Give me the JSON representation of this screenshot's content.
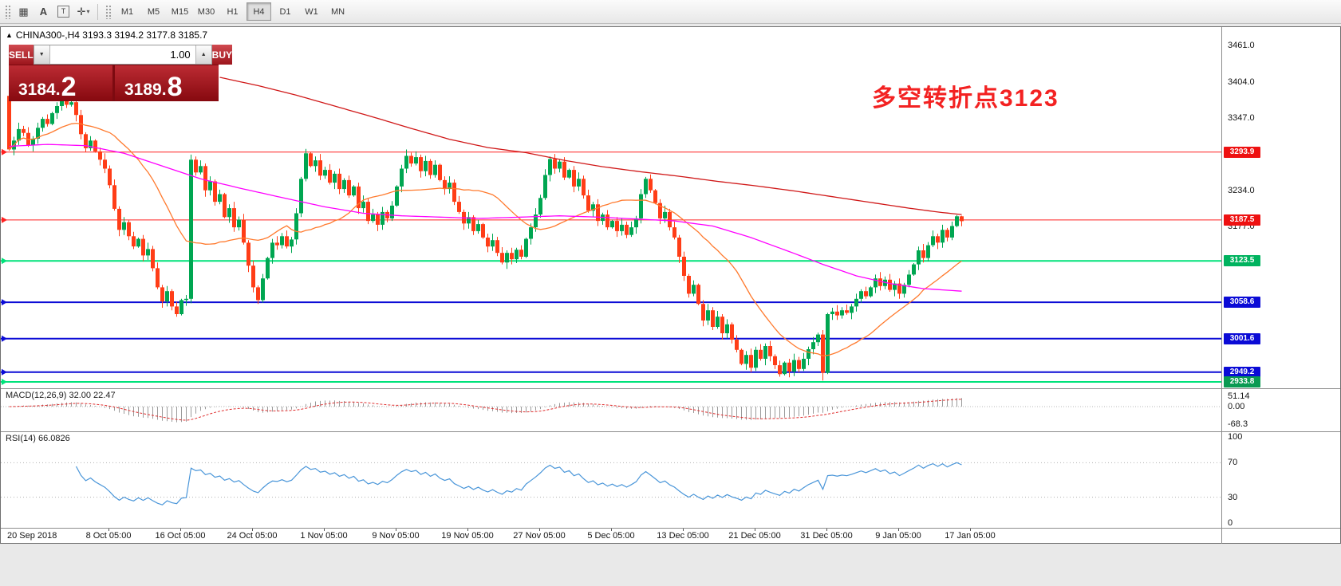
{
  "colors": {
    "up": "#00a651",
    "down": "#ff3d17",
    "ma_fast": "#ff7a2e",
    "ma_mid": "#ff00ff",
    "ma_slow": "#d01818",
    "macd_hist": "#9a9a9a",
    "macd_signal": "#e03030",
    "rsi": "#4a96d9"
  },
  "toolbar": {
    "icons": [
      {
        "name": "chart-grid-icon",
        "glyph": "▦"
      },
      {
        "name": "text-annotation-icon",
        "glyph": "A"
      },
      {
        "name": "text-frame-icon",
        "glyph": "T",
        "boxed": true
      },
      {
        "name": "pointer-dropdown-icon",
        "glyph": "✛",
        "caret": "▾"
      }
    ],
    "timeframes": [
      "M1",
      "M5",
      "M15",
      "M30",
      "H1",
      "H4",
      "D1",
      "W1",
      "MN"
    ],
    "active_timeframe": "H4"
  },
  "symbol_header": {
    "direction_icon": "▲",
    "text": "CHINA300-,H4  3193.3 3194.2 3177.8 3185.7"
  },
  "trade_panel": {
    "sell_label": "SELL",
    "buy_label": "BUY",
    "volume": "1.00",
    "spin_down_glyph": "▼",
    "spin_up_glyph": "▲",
    "sell_price_main": "3184.",
    "sell_price_big": "2",
    "buy_price_main": "3189.",
    "buy_price_big": "8"
  },
  "annotation": {
    "text": "多空转折点3123",
    "color": "#f32222"
  },
  "price_axis": {
    "plain_labels": [
      {
        "text": "3461.0",
        "price": 3461.0
      },
      {
        "text": "3404.0",
        "price": 3404.0
      },
      {
        "text": "3347.0",
        "price": 3347.0
      },
      {
        "text": "3234.0",
        "price": 3234.0
      },
      {
        "text": "3177.0",
        "price": 3177.0
      }
    ],
    "tags": [
      {
        "text": "3293.9",
        "price": 3293.9,
        "color": "#ee1111"
      },
      {
        "text": "3187.5",
        "price": 3187.5,
        "color": "#ee1111"
      },
      {
        "text": "3123.5",
        "price": 3123.5,
        "color": "#00b35f"
      },
      {
        "text": "3058.6",
        "price": 3058.6,
        "color": "#0b0bd6"
      },
      {
        "text": "3001.6",
        "price": 3001.6,
        "color": "#0b0bd6"
      },
      {
        "text": "2949.2",
        "price": 2949.2,
        "color": "#0b0bd6"
      },
      {
        "text": "2933.8",
        "price": 2933.8,
        "color": "#0a9a52"
      }
    ]
  },
  "panels": {
    "macd": {
      "label": "MACD(12,26,9) 32.00 22.47",
      "axis": [
        "51.14",
        "0.00",
        "-68.3"
      ]
    },
    "rsi": {
      "label": "RSI(14) 66.0826",
      "axis": [
        "100",
        "70",
        "30",
        "0"
      ]
    }
  },
  "time_axis": [
    "20 Sep 2018",
    "8 Oct 05:00",
    "16 Oct 05:00",
    "24 Oct 05:00",
    "1 Nov 05:00",
    "9 Nov 05:00",
    "19 Nov 05:00",
    "27 Nov 05:00",
    "5 Dec 05:00",
    "13 Dec 05:00",
    "21 Dec 05:00",
    "31 Dec 05:00",
    "9 Jan 05:00",
    "17 Jan 05:00"
  ],
  "chart_data": {
    "type": "candlestick",
    "symbol": "CHINA300-",
    "timeframe": "H4",
    "last_bar": {
      "open": 3193.3,
      "high": 3194.2,
      "low": 3177.8,
      "close": 3185.7
    },
    "bid": "3184.2",
    "ask": "3189.8",
    "price_axis_range": {
      "top": 3461.0,
      "bottom": 2933.8
    },
    "first_open": 3382,
    "closes": [
      3298,
      3312,
      3330,
      3324,
      3305,
      3315,
      3332,
      3346,
      3338,
      3355,
      3366,
      3374,
      3368,
      3372,
      3352,
      3322,
      3300,
      3312,
      3295,
      3282,
      3268,
      3242,
      3205,
      3172,
      3184,
      3162,
      3146,
      3158,
      3132,
      3142,
      3112,
      3082,
      3060,
      3076,
      3052,
      3040,
      3062,
      3064,
      3282,
      3262,
      3272,
      3234,
      3248,
      3216,
      3228,
      3192,
      3206,
      3176,
      3188,
      3152,
      3116,
      3082,
      3062,
      3096,
      3128,
      3152,
      3148,
      3162,
      3146,
      3157,
      3198,
      3252,
      3292,
      3272,
      3281,
      3257,
      3266,
      3246,
      3260,
      3236,
      3250,
      3226,
      3240,
      3206,
      3216,
      3186,
      3196,
      3180,
      3200,
      3190,
      3210,
      3240,
      3268,
      3288,
      3276,
      3286,
      3264,
      3280,
      3258,
      3274,
      3250,
      3236,
      3246,
      3216,
      3200,
      3182,
      3192,
      3170,
      3181,
      3160,
      3146,
      3156,
      3136,
      3121,
      3136,
      3126,
      3141,
      3130,
      3158,
      3176,
      3196,
      3222,
      3258,
      3283,
      3268,
      3279,
      3254,
      3266,
      3240,
      3252,
      3226,
      3202,
      3212,
      3186,
      3196,
      3176,
      3186,
      3170,
      3180,
      3164,
      3176,
      3190,
      3228,
      3252,
      3234,
      3214,
      3190,
      3200,
      3176,
      3160,
      3130,
      3100,
      3072,
      3086,
      3056,
      3030,
      3046,
      3020,
      3036,
      3010,
      3024,
      3000,
      2984,
      2962,
      2976,
      2956,
      2984,
      2970,
      2990,
      2974,
      2960,
      2946,
      2964,
      2950,
      2968,
      2954,
      2970,
      2985,
      2996,
      3008,
      2948,
      3040,
      3044,
      3038,
      3046,
      3042,
      3052,
      3064,
      3076,
      3068,
      3082,
      3096,
      3084,
      3094,
      3078,
      3088,
      3072,
      3086,
      3102,
      3118,
      3140,
      3128,
      3148,
      3162,
      3152,
      3172,
      3160,
      3178,
      3193.3,
      3185.7
    ],
    "wick_overrides": {
      "12": {
        "high": 3390
      },
      "38": {
        "high": 3290
      },
      "170": {
        "low": 2936
      },
      "199": {
        "high": 3194.2,
        "low": 3177.8
      }
    },
    "hlines": [
      {
        "price": 3293.9,
        "color": "#ff2020",
        "width": 1
      },
      {
        "price": 3187.5,
        "color": "#ff2020",
        "width": 1
      },
      {
        "price": 3123.5,
        "color": "#00e27a",
        "width": 2
      },
      {
        "price": 3058.6,
        "color": "#0b0bd6",
        "width": 2
      },
      {
        "price": 3001.6,
        "color": "#0b0bd6",
        "width": 2
      },
      {
        "price": 2949.2,
        "color": "#0b0bd6",
        "width": 2
      },
      {
        "price": 2933.8,
        "color": "#00e27a",
        "width": 2
      }
    ],
    "ma_fast_period": 21,
    "ma_mid_points": [
      [
        0,
        3303
      ],
      [
        8,
        3306
      ],
      [
        16,
        3304
      ],
      [
        24,
        3292
      ],
      [
        32,
        3272
      ],
      [
        40,
        3252
      ],
      [
        49,
        3236
      ],
      [
        58,
        3221
      ],
      [
        66,
        3208
      ],
      [
        74,
        3198
      ],
      [
        82,
        3194
      ],
      [
        90,
        3192
      ],
      [
        98,
        3190
      ],
      [
        107,
        3192
      ],
      [
        115,
        3194
      ],
      [
        123,
        3192
      ],
      [
        131,
        3189
      ],
      [
        139,
        3186
      ],
      [
        147,
        3178
      ],
      [
        155,
        3160
      ],
      [
        163,
        3138
      ],
      [
        170,
        3118
      ],
      [
        177,
        3100
      ],
      [
        184,
        3088
      ],
      [
        191,
        3080
      ],
      [
        199,
        3076
      ]
    ],
    "ma_slow_points": [
      [
        44,
        3411
      ],
      [
        52,
        3398
      ],
      [
        60,
        3383
      ],
      [
        68,
        3366
      ],
      [
        76,
        3349
      ],
      [
        84,
        3331
      ],
      [
        92,
        3314
      ],
      [
        100,
        3301
      ],
      [
        108,
        3293
      ],
      [
        116,
        3281
      ],
      [
        124,
        3271
      ],
      [
        132,
        3263
      ],
      [
        140,
        3256
      ],
      [
        148,
        3248
      ],
      [
        156,
        3241
      ],
      [
        164,
        3233
      ],
      [
        172,
        3224
      ],
      [
        180,
        3215
      ],
      [
        188,
        3206
      ],
      [
        194,
        3200
      ],
      [
        199,
        3196
      ]
    ],
    "macd_params": [
      12,
      26,
      9
    ],
    "rsi_period": 14,
    "rsi_last": 66.0826
  }
}
